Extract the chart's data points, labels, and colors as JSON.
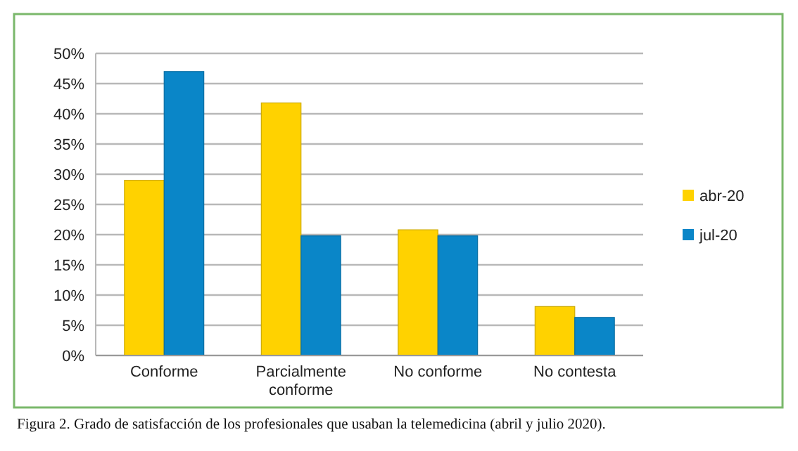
{
  "chart_data": {
    "type": "bar",
    "categories": [
      "Conforme",
      "Parcialmente conforme",
      "No conforme",
      "No contesta"
    ],
    "series": [
      {
        "name": "abr-20",
        "color": "#ffd200",
        "values": [
          29,
          41.8,
          20.8,
          8.1
        ]
      },
      {
        "name": "jul-20",
        "color": "#0a86c8",
        "values": [
          47,
          19.8,
          19.8,
          6.3
        ]
      }
    ],
    "ylim": [
      0,
      50
    ],
    "yticks": [
      {
        "value": 0,
        "label": "0%"
      },
      {
        "value": 5,
        "label": "5%"
      },
      {
        "value": 10,
        "label": "10%"
      },
      {
        "value": 15,
        "label": "15%"
      },
      {
        "value": 20,
        "label": "20%"
      },
      {
        "value": 25,
        "label": "25%"
      },
      {
        "value": 30,
        "label": "30%"
      },
      {
        "value": 35,
        "label": "35%"
      },
      {
        "value": 40,
        "label": "40%"
      },
      {
        "value": 45,
        "label": "45%"
      },
      {
        "value": 50,
        "label": "50%"
      }
    ],
    "grid": "y",
    "legend": "right",
    "annotations": [
      "Figura 2. Grado de satisfacción de los profesionales que usaban la telemedicina (abril y julio 2020)."
    ]
  }
}
